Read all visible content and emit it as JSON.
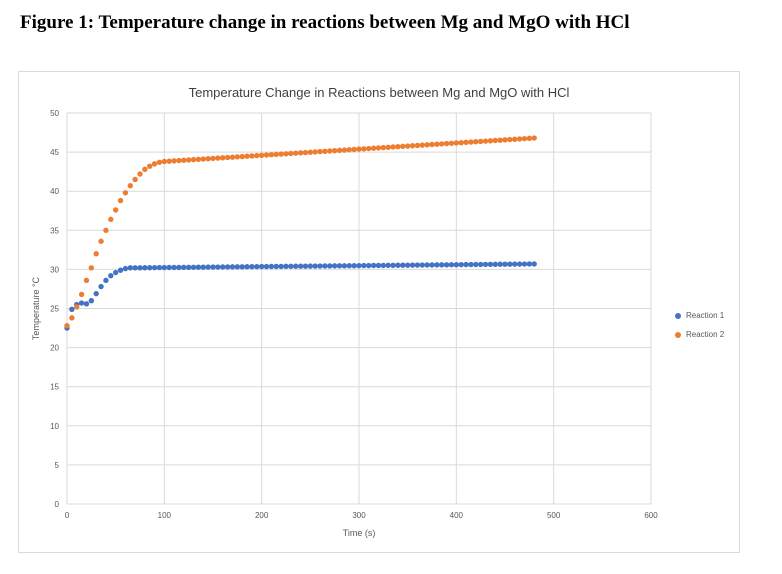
{
  "figure_caption": "Figure 1: Temperature change in reactions between Mg and MgO with HCl",
  "chart_data": {
    "type": "scatter",
    "title": "Temperature Change in Reactions between Mg and MgO with HCl",
    "xlabel": "Time (s)",
    "ylabel": "Temperature °C",
    "xlim": [
      0,
      600
    ],
    "ylim": [
      0,
      50
    ],
    "xticks": [
      0,
      100,
      200,
      300,
      400,
      500,
      600
    ],
    "yticks": [
      0,
      5,
      10,
      15,
      20,
      25,
      30,
      35,
      40,
      45,
      50
    ],
    "grid": true,
    "legend_position": "right",
    "series": [
      {
        "name": "Reaction 1",
        "color": "#4472c4",
        "points": [
          [
            0,
            22.5
          ],
          [
            5,
            24.9
          ],
          [
            10,
            25.5
          ],
          [
            15,
            25.7
          ],
          [
            20,
            25.6
          ],
          [
            25,
            26.0
          ],
          [
            30,
            26.9
          ],
          [
            35,
            27.8
          ],
          [
            40,
            28.6
          ],
          [
            45,
            29.2
          ],
          [
            50,
            29.6
          ],
          [
            55,
            29.9
          ],
          [
            60,
            30.1
          ],
          [
            65,
            30.2
          ],
          [
            70,
            30.2
          ],
          [
            480,
            30.7
          ]
        ]
      },
      {
        "name": "Reaction 2",
        "color": "#ed7d31",
        "points": [
          [
            0,
            22.8
          ],
          [
            5,
            23.8
          ],
          [
            10,
            25.2
          ],
          [
            15,
            26.8
          ],
          [
            20,
            28.6
          ],
          [
            25,
            30.2
          ],
          [
            30,
            32.0
          ],
          [
            35,
            33.6
          ],
          [
            40,
            35.0
          ],
          [
            45,
            36.4
          ],
          [
            50,
            37.6
          ],
          [
            55,
            38.8
          ],
          [
            60,
            39.8
          ],
          [
            65,
            40.7
          ],
          [
            70,
            41.5
          ],
          [
            75,
            42.2
          ],
          [
            80,
            42.8
          ],
          [
            85,
            43.2
          ],
          [
            90,
            43.5
          ],
          [
            95,
            43.7
          ],
          [
            100,
            43.8
          ],
          [
            480,
            46.8
          ]
        ]
      }
    ]
  }
}
